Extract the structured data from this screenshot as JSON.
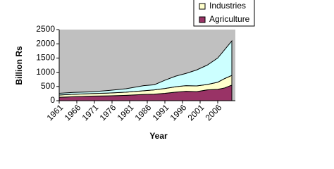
{
  "chart_data": {
    "type": "stacked-area",
    "x_label": "Year",
    "y_label": "Billion Rs",
    "x": [
      1961,
      1965,
      1970,
      1975,
      1980,
      1985,
      1988,
      1991,
      1994,
      1997,
      2000,
      2003,
      2006,
      2008,
      2010
    ],
    "series": [
      {
        "name": "Agriculture",
        "color": "#993366",
        "values": [
          120,
          140,
          160,
          170,
          190,
          220,
          230,
          260,
          300,
          330,
          320,
          380,
          400,
          450,
          550
        ]
      },
      {
        "name": "Industries",
        "color": "#ffffcc",
        "values": [
          80,
          85,
          90,
          100,
          110,
          130,
          150,
          170,
          190,
          200,
          200,
          190,
          250,
          330,
          340
        ]
      },
      {
        "color": "#ccffff",
        "values": [
          60,
          65,
          60,
          90,
          120,
          180,
          180,
          290,
          370,
          430,
          560,
          680,
          850,
          1020,
          1210
        ]
      }
    ],
    "xlim": [
      1961,
      2011
    ],
    "xticks": [
      1961,
      1966,
      1971,
      1976,
      1981,
      1986,
      1991,
      1996,
      2001,
      2006
    ],
    "ylim": [
      0,
      2500
    ],
    "yticks": [
      0,
      500,
      1000,
      1500,
      2000,
      2500
    ],
    "plot_background": "#c0c0c0"
  }
}
